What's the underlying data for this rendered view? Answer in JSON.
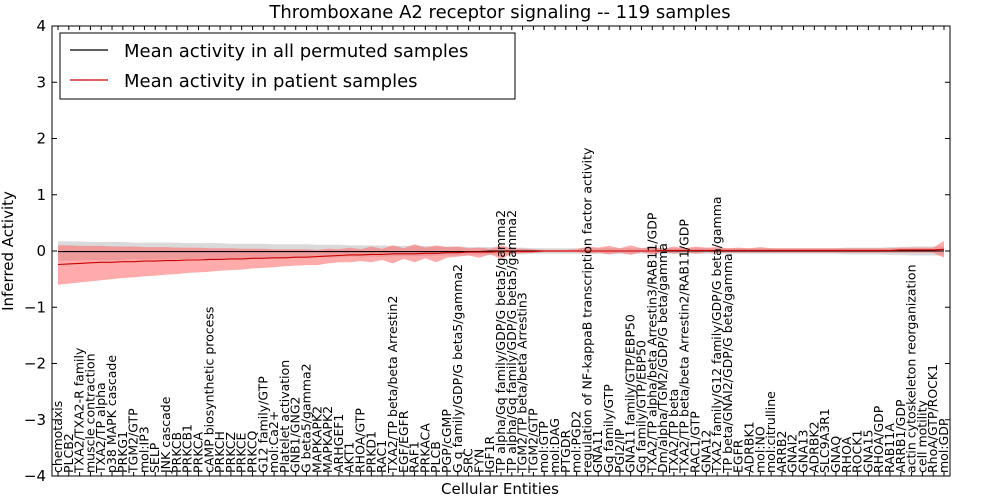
{
  "chart_data": {
    "type": "line",
    "title": "Thromboxane A2 receptor signaling -- 119 samples",
    "xlabel": "Cellular Entities",
    "ylabel": "Inferred Activity",
    "ylim": [
      -4,
      4
    ],
    "yticks": [
      -4,
      -3,
      -2,
      -1,
      0,
      1,
      2,
      3,
      4
    ],
    "legend_position": "top-left",
    "grid": false,
    "colors": {
      "permuted_line": "#000000",
      "permuted_band": "#bbbbbb",
      "patient_line": "#cc0000",
      "patient_band": "#ff6666"
    },
    "categories": [
      "chemotaxis",
      "PLCB2",
      "TXA2/TXA2-R family",
      "muscle contraction",
      "TXA2/TP alpha",
      "p38 MAPK cascade",
      "PRKG1",
      "TGM2/GTP",
      "mol:IP3",
      "SELP",
      "JNK cascade",
      "PRKCB",
      "PRKCB1",
      "PRKCA",
      "cAMP biosynthetic process",
      "PRKCH",
      "PRKCZ",
      "PRKCE",
      "PRKCQ",
      "G12 family/GTP",
      "mol:Ca2+",
      "Platelet activation",
      "GNB1/GNG2",
      "G beta5/gamma2",
      "MAPKAPK2",
      "MAPKAPK2",
      "ARHGEF1",
      "AKT1",
      "RHOA/GTP",
      "PRKD1",
      "RAC1",
      "TXA2/TP beta/beta Arrestin2",
      "EGF/EGFR",
      "RAF1",
      "PRKACA",
      "PLCB",
      "PGP/cGMP",
      "G q family/GDP/G beta5/gamma2",
      "SRC",
      "FYN",
      "IGF1R",
      "TP alpha/Gq family/GDP/G beta5/gamma2",
      "TP alpha/Gq family/GDP/G beta5/gamma2",
      "TGM2/TP beta/beta Arrestin3",
      "TGM2/GTP",
      "mol:GTP",
      "mol:DAG",
      "PTGDR",
      "mol:PGD2",
      "regulation of NF-kappaB transcription factor activity",
      "GNA11",
      "Gq family/GTP",
      "PGI2/IP",
      "GNA11 family/GTP/EBP50",
      "Gq family/GTP/EBP50",
      "TXA2/TP alpha/beta Arrestin3/RAB11/GDP",
      "Dm/alpha/TGM2/GDP/G beta/gamma",
      "TXA2/TP beta",
      "TXA2/TP beta/beta Arrestin2/RAB11/GDP",
      "RAC1/GTP",
      "GNA12",
      "TXA2 family/G12 family/GDP/G beta/gamma",
      "TP beta/GNAI2/GDP/G beta/gamma",
      "EGFR",
      "ADRBK1",
      "mol:NO",
      "mol:citrulline",
      "ARRB2",
      "GNAI2",
      "GNA13",
      "ADRBK2",
      "SLC9A3R1",
      "GNAQ",
      "RHOA",
      "ROCK1",
      "GNA15",
      "RHOA/GDP",
      "RAB11A",
      "ARRB1/GDP",
      "actin cytoskeleton reorganization",
      "cell motility",
      "RhoA/GTP/ROCK1",
      "mol:GDP"
    ],
    "series": [
      {
        "name": "Mean activity in all permuted samples",
        "color": "#000000",
        "values": [
          -0.01,
          -0.01,
          -0.01,
          -0.01,
          -0.01,
          -0.01,
          -0.01,
          -0.01,
          -0.01,
          -0.01,
          -0.01,
          -0.01,
          -0.01,
          -0.01,
          -0.01,
          -0.01,
          -0.01,
          -0.01,
          -0.01,
          -0.01,
          -0.01,
          -0.01,
          -0.01,
          -0.01,
          -0.01,
          -0.01,
          -0.01,
          -0.01,
          -0.01,
          -0.01,
          -0.01,
          -0.01,
          -0.01,
          -0.01,
          -0.01,
          -0.01,
          -0.01,
          -0.01,
          -0.01,
          -0.01,
          0,
          0,
          0,
          0,
          0,
          0,
          0,
          0,
          0,
          0,
          0,
          0,
          0,
          0,
          0,
          0,
          0,
          0,
          0,
          0,
          0,
          0,
          0,
          0,
          0,
          0,
          0,
          0,
          0,
          0,
          0,
          0,
          0,
          0,
          0,
          0,
          0,
          0,
          0,
          0,
          0,
          0,
          0
        ],
        "lower": [
          -0.17,
          -0.17,
          -0.17,
          -0.16,
          -0.16,
          -0.16,
          -0.16,
          -0.15,
          -0.15,
          -0.15,
          -0.15,
          -0.15,
          -0.14,
          -0.14,
          -0.14,
          -0.14,
          -0.13,
          -0.13,
          -0.13,
          -0.13,
          -0.12,
          -0.12,
          -0.12,
          -0.12,
          -0.11,
          -0.11,
          -0.11,
          -0.1,
          -0.1,
          -0.1,
          -0.1,
          -0.09,
          -0.09,
          -0.09,
          -0.09,
          -0.08,
          -0.08,
          -0.08,
          -0.07,
          -0.07,
          -0.07,
          -0.06,
          -0.06,
          -0.06,
          -0.05,
          -0.05,
          -0.05,
          -0.05,
          -0.05,
          -0.05,
          -0.05,
          -0.05,
          -0.05,
          -0.05,
          -0.05,
          -0.05,
          -0.05,
          -0.05,
          -0.05,
          -0.05,
          -0.05,
          -0.05,
          -0.05,
          -0.05,
          -0.05,
          -0.05,
          -0.05,
          -0.05,
          -0.05,
          -0.05,
          -0.05,
          -0.05,
          -0.05,
          -0.06,
          -0.06,
          -0.06,
          -0.06,
          -0.07,
          -0.07,
          -0.08,
          -0.08,
          -0.08,
          -0.08
        ],
        "upper": [
          0.17,
          0.17,
          0.17,
          0.16,
          0.16,
          0.16,
          0.16,
          0.15,
          0.15,
          0.15,
          0.15,
          0.15,
          0.14,
          0.14,
          0.14,
          0.14,
          0.13,
          0.13,
          0.13,
          0.13,
          0.12,
          0.12,
          0.12,
          0.12,
          0.11,
          0.11,
          0.11,
          0.1,
          0.1,
          0.1,
          0.1,
          0.09,
          0.09,
          0.09,
          0.09,
          0.08,
          0.08,
          0.08,
          0.07,
          0.07,
          0.07,
          0.06,
          0.06,
          0.06,
          0.05,
          0.05,
          0.05,
          0.05,
          0.05,
          0.05,
          0.05,
          0.05,
          0.05,
          0.05,
          0.05,
          0.05,
          0.05,
          0.05,
          0.05,
          0.05,
          0.05,
          0.05,
          0.05,
          0.05,
          0.05,
          0.05,
          0.05,
          0.05,
          0.05,
          0.05,
          0.05,
          0.05,
          0.05,
          0.06,
          0.06,
          0.06,
          0.06,
          0.07,
          0.07,
          0.08,
          0.08,
          0.08,
          0.08
        ]
      },
      {
        "name": "Mean activity in patient samples",
        "color": "#cc0000",
        "values": [
          -0.24,
          -0.23,
          -0.22,
          -0.21,
          -0.2,
          -0.2,
          -0.19,
          -0.19,
          -0.18,
          -0.18,
          -0.17,
          -0.17,
          -0.16,
          -0.16,
          -0.15,
          -0.15,
          -0.14,
          -0.14,
          -0.13,
          -0.13,
          -0.12,
          -0.12,
          -0.11,
          -0.11,
          -0.1,
          -0.09,
          -0.08,
          -0.07,
          -0.07,
          -0.06,
          -0.06,
          -0.05,
          -0.05,
          -0.05,
          -0.04,
          -0.04,
          -0.03,
          -0.03,
          -0.02,
          -0.02,
          -0.02,
          -0.01,
          -0.01,
          -0.01,
          -0.01,
          0,
          0,
          0,
          0,
          0,
          0,
          0,
          0,
          0,
          0,
          0,
          0.01,
          0.01,
          0.01,
          0.01,
          0.01,
          0.01,
          0.01,
          0.01,
          0.01,
          0.01,
          0.01,
          0.01,
          0.01,
          0.01,
          0.01,
          0.01,
          0.01,
          0.01,
          0.01,
          0.01,
          0.01,
          0.01,
          0.02,
          0.02,
          0.02,
          0.02,
          0.03
        ],
        "lower": [
          -0.6,
          -0.58,
          -0.56,
          -0.54,
          -0.52,
          -0.5,
          -0.48,
          -0.47,
          -0.45,
          -0.44,
          -0.42,
          -0.41,
          -0.39,
          -0.38,
          -0.37,
          -0.35,
          -0.34,
          -0.33,
          -0.31,
          -0.3,
          -0.29,
          -0.27,
          -0.26,
          -0.25,
          -0.25,
          -0.22,
          -0.2,
          -0.2,
          -0.18,
          -0.2,
          -0.16,
          -0.22,
          -0.14,
          -0.2,
          -0.13,
          -0.2,
          -0.12,
          -0.1,
          -0.08,
          -0.12,
          -0.06,
          -0.14,
          -0.05,
          -0.04,
          -0.03,
          -0.02,
          -0.02,
          -0.02,
          -0.02,
          -0.05,
          -0.03,
          -0.06,
          -0.03,
          -0.07,
          -0.02,
          -0.06,
          -0.02,
          -0.05,
          -0.02,
          -0.05,
          -0.02,
          -0.04,
          -0.03,
          -0.03,
          -0.03,
          -0.03,
          -0.03,
          -0.03,
          -0.03,
          -0.03,
          -0.03,
          -0.03,
          -0.03,
          -0.03,
          -0.03,
          -0.03,
          -0.03,
          -0.03,
          -0.03,
          -0.03,
          -0.03,
          -0.03,
          -0.12
        ],
        "upper": [
          0.1,
          0.1,
          0.09,
          0.09,
          0.09,
          0.08,
          0.08,
          0.08,
          0.07,
          0.07,
          0.07,
          0.06,
          0.06,
          0.06,
          0.05,
          0.05,
          0.05,
          0.04,
          0.04,
          0.04,
          0.03,
          0.03,
          0.03,
          0.03,
          0.02,
          0.04,
          0.03,
          0.06,
          0.03,
          0.08,
          0.04,
          0.1,
          0.05,
          0.12,
          0.06,
          0.1,
          0.07,
          0.08,
          0.05,
          0.06,
          0.04,
          0.1,
          0.05,
          0.04,
          0.03,
          0.02,
          0.02,
          0.02,
          0.03,
          0.08,
          0.06,
          0.09,
          0.05,
          0.1,
          0.05,
          0.08,
          0.04,
          0.08,
          0.05,
          0.08,
          0.06,
          0.07,
          0.05,
          0.06,
          0.05,
          0.07,
          0.05,
          0.05,
          0.05,
          0.05,
          0.05,
          0.05,
          0.05,
          0.05,
          0.05,
          0.05,
          0.05,
          0.05,
          0.06,
          0.06,
          0.06,
          0.06,
          0.18
        ]
      }
    ]
  }
}
